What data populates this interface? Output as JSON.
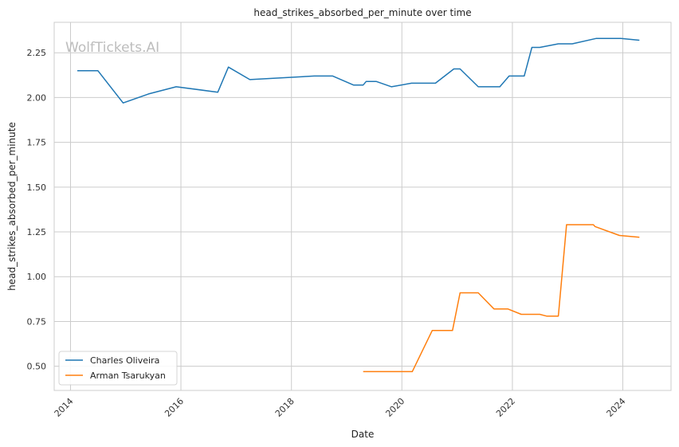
{
  "chart_data": {
    "type": "line",
    "title": "head_strikes_absorbed_per_minute over time",
    "xlabel": "Date",
    "ylabel": "head_strikes_absorbed_per_minute",
    "watermark": "WolfTickets.AI",
    "xlim": [
      "2013-09-15",
      "2024-11-15"
    ],
    "ylim": [
      0.365,
      2.42
    ],
    "x_ticks": [
      "2014",
      "2016",
      "2018",
      "2020",
      "2022",
      "2024"
    ],
    "y_ticks": [
      "0.50",
      "0.75",
      "1.00",
      "1.25",
      "1.50",
      "1.75",
      "2.00",
      "2.25"
    ],
    "grid": true,
    "legend_position": "lower-left",
    "series": [
      {
        "name": "Charles Oliveira",
        "color": "#1f77b4",
        "points": [
          [
            "2014-02-15",
            2.15
          ],
          [
            "2014-07-01",
            2.15
          ],
          [
            "2014-12-15",
            1.97
          ],
          [
            "2015-06-01",
            2.02
          ],
          [
            "2015-12-01",
            2.06
          ],
          [
            "2016-09-01",
            2.03
          ],
          [
            "2016-11-10",
            2.17
          ],
          [
            "2017-04-01",
            2.1
          ],
          [
            "2018-06-01",
            2.12
          ],
          [
            "2018-10-01",
            2.12
          ],
          [
            "2019-02-15",
            2.07
          ],
          [
            "2019-04-20",
            2.07
          ],
          [
            "2019-05-10",
            2.09
          ],
          [
            "2019-07-15",
            2.09
          ],
          [
            "2019-10-25",
            2.06
          ],
          [
            "2020-03-05",
            2.08
          ],
          [
            "2020-08-10",
            2.08
          ],
          [
            "2020-12-10",
            2.16
          ],
          [
            "2021-01-20",
            2.16
          ],
          [
            "2021-05-20",
            2.06
          ],
          [
            "2021-10-10",
            2.06
          ],
          [
            "2021-12-10",
            2.12
          ],
          [
            "2022-03-20",
            2.12
          ],
          [
            "2022-05-10",
            2.28
          ],
          [
            "2022-07-01",
            2.28
          ],
          [
            "2022-11-01",
            2.3
          ],
          [
            "2023-02-01",
            2.3
          ],
          [
            "2023-07-10",
            2.33
          ],
          [
            "2023-12-20",
            2.33
          ],
          [
            "2024-04-20",
            2.32
          ]
        ]
      },
      {
        "name": "Arman Tsarukyan",
        "color": "#ff7f0e",
        "points": [
          [
            "2019-04-20",
            0.47
          ],
          [
            "2020-03-10",
            0.47
          ],
          [
            "2020-07-20",
            0.7
          ],
          [
            "2020-12-01",
            0.7
          ],
          [
            "2021-01-20",
            0.91
          ],
          [
            "2021-05-20",
            0.91
          ],
          [
            "2021-09-01",
            0.82
          ],
          [
            "2021-12-01",
            0.82
          ],
          [
            "2022-03-01",
            0.79
          ],
          [
            "2022-07-01",
            0.79
          ],
          [
            "2022-08-15",
            0.78
          ],
          [
            "2022-11-01",
            0.78
          ],
          [
            "2022-12-25",
            1.29
          ],
          [
            "2023-06-20",
            1.29
          ],
          [
            "2023-07-01",
            1.28
          ],
          [
            "2023-12-10",
            1.23
          ],
          [
            "2024-04-20",
            1.22
          ]
        ]
      }
    ]
  }
}
